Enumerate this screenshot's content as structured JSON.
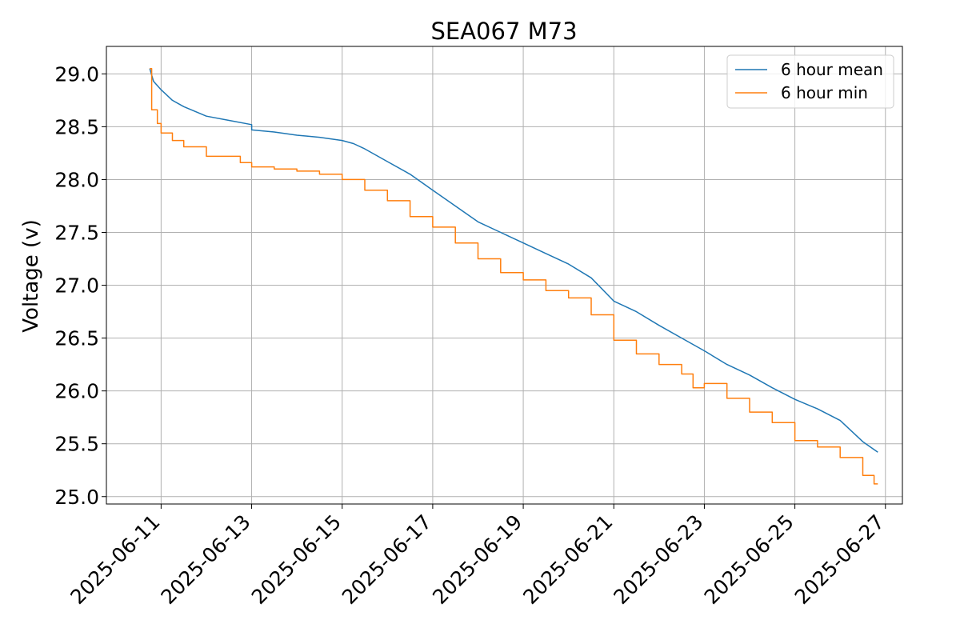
{
  "chart_data": {
    "type": "line",
    "title": "SEA067 M73",
    "xlabel": "",
    "ylabel": "Voltage (v)",
    "xlim": [
      "2025-06-09T19:00",
      "2025-06-27T09:00"
    ],
    "ylim": [
      24.93,
      29.26
    ],
    "x_ticks": [
      "2025-06-11",
      "2025-06-13",
      "2025-06-15",
      "2025-06-17",
      "2025-06-19",
      "2025-06-21",
      "2025-06-23",
      "2025-06-25",
      "2025-06-27"
    ],
    "y_ticks": [
      "25.0",
      "25.5",
      "26.0",
      "26.5",
      "27.0",
      "27.5",
      "28.0",
      "28.5",
      "29.0"
    ],
    "grid": true,
    "legend_position": "top-right",
    "series": [
      {
        "name": "6 hour mean",
        "color": "#1f77b4",
        "points": [
          [
            "2025-06-10T18:00",
            29.05
          ],
          [
            "2025-06-10T20:00",
            28.93
          ],
          [
            "2025-06-11T00:00",
            28.85
          ],
          [
            "2025-06-11T06:00",
            28.75
          ],
          [
            "2025-06-11T12:00",
            28.69
          ],
          [
            "2025-06-12T00:00",
            28.6
          ],
          [
            "2025-06-12T12:00",
            28.56
          ],
          [
            "2025-06-13T00:00",
            28.52
          ],
          [
            "2025-06-13T00:00",
            28.47
          ],
          [
            "2025-06-13T12:00",
            28.45
          ],
          [
            "2025-06-14T00:00",
            28.42
          ],
          [
            "2025-06-14T12:00",
            28.4
          ],
          [
            "2025-06-15T00:00",
            28.37
          ],
          [
            "2025-06-15T06:00",
            28.34
          ],
          [
            "2025-06-15T12:00",
            28.29
          ],
          [
            "2025-06-16T00:00",
            28.17
          ],
          [
            "2025-06-16T12:00",
            28.05
          ],
          [
            "2025-06-17T00:00",
            27.9
          ],
          [
            "2025-06-17T12:00",
            27.75
          ],
          [
            "2025-06-18T00:00",
            27.6
          ],
          [
            "2025-06-18T12:00",
            27.5
          ],
          [
            "2025-06-19T00:00",
            27.4
          ],
          [
            "2025-06-19T12:00",
            27.3
          ],
          [
            "2025-06-20T00:00",
            27.2
          ],
          [
            "2025-06-20T12:00",
            27.07
          ],
          [
            "2025-06-21T00:00",
            26.85
          ],
          [
            "2025-06-21T12:00",
            26.75
          ],
          [
            "2025-06-22T00:00",
            26.62
          ],
          [
            "2025-06-22T12:00",
            26.5
          ],
          [
            "2025-06-23T00:00",
            26.38
          ],
          [
            "2025-06-23T12:00",
            26.25
          ],
          [
            "2025-06-24T00:00",
            26.15
          ],
          [
            "2025-06-24T12:00",
            26.03
          ],
          [
            "2025-06-25T00:00",
            25.92
          ],
          [
            "2025-06-25T12:00",
            25.83
          ],
          [
            "2025-06-26T00:00",
            25.72
          ],
          [
            "2025-06-26T12:00",
            25.52
          ],
          [
            "2025-06-26T20:00",
            25.42
          ]
        ]
      },
      {
        "name": "6 hour min",
        "color": "#ff7f0e",
        "step": true,
        "points": [
          [
            "2025-06-10T18:00",
            29.05
          ],
          [
            "2025-06-10T19:00",
            28.66
          ],
          [
            "2025-06-10T22:00",
            28.53
          ],
          [
            "2025-06-11T00:00",
            28.44
          ],
          [
            "2025-06-11T06:00",
            28.37
          ],
          [
            "2025-06-11T12:00",
            28.31
          ],
          [
            "2025-06-12T00:00",
            28.22
          ],
          [
            "2025-06-12T18:00",
            28.16
          ],
          [
            "2025-06-13T00:00",
            28.12
          ],
          [
            "2025-06-13T12:00",
            28.1
          ],
          [
            "2025-06-14T00:00",
            28.08
          ],
          [
            "2025-06-14T12:00",
            28.05
          ],
          [
            "2025-06-15T00:00",
            28.0
          ],
          [
            "2025-06-15T12:00",
            27.9
          ],
          [
            "2025-06-16T00:00",
            27.8
          ],
          [
            "2025-06-16T12:00",
            27.65
          ],
          [
            "2025-06-17T00:00",
            27.55
          ],
          [
            "2025-06-17T12:00",
            27.4
          ],
          [
            "2025-06-18T00:00",
            27.25
          ],
          [
            "2025-06-18T12:00",
            27.12
          ],
          [
            "2025-06-19T00:00",
            27.05
          ],
          [
            "2025-06-19T12:00",
            26.95
          ],
          [
            "2025-06-20T00:00",
            26.88
          ],
          [
            "2025-06-20T12:00",
            26.72
          ],
          [
            "2025-06-21T00:00",
            26.48
          ],
          [
            "2025-06-21T12:00",
            26.35
          ],
          [
            "2025-06-22T00:00",
            26.25
          ],
          [
            "2025-06-22T12:00",
            26.16
          ],
          [
            "2025-06-22T18:00",
            26.03
          ],
          [
            "2025-06-23T00:00",
            26.07
          ],
          [
            "2025-06-23T12:00",
            25.93
          ],
          [
            "2025-06-24T00:00",
            25.8
          ],
          [
            "2025-06-24T12:00",
            25.7
          ],
          [
            "2025-06-25T00:00",
            25.53
          ],
          [
            "2025-06-25T12:00",
            25.47
          ],
          [
            "2025-06-26T00:00",
            25.37
          ],
          [
            "2025-06-26T12:00",
            25.2
          ],
          [
            "2025-06-26T18:00",
            25.12
          ],
          [
            "2025-06-26T20:00",
            25.12
          ]
        ]
      }
    ]
  }
}
